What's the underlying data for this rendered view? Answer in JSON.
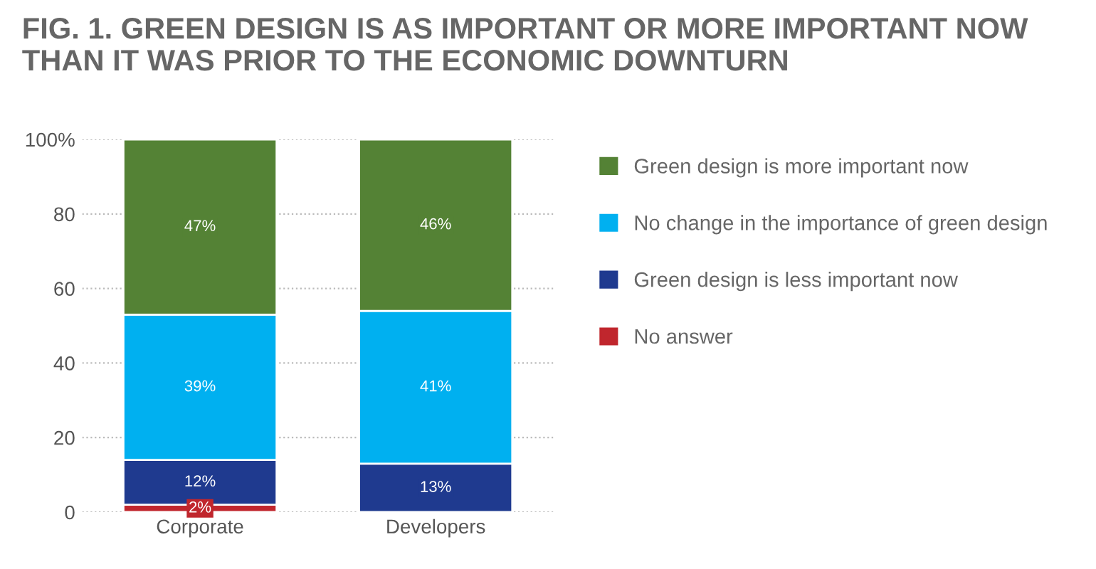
{
  "chart_data": {
    "type": "bar",
    "stacked": true,
    "title": "FIG. 1. GREEN DESIGN IS AS IMPORTANT OR MORE IMPORTANT NOW THAN IT WAS PRIOR TO THE ECONOMIC DOWNTURN",
    "categories": [
      "Corporate",
      "Developers"
    ],
    "series": [
      {
        "name": "No answer",
        "color": "#c0262d",
        "values": [
          2,
          0
        ],
        "value_labels": [
          "2%",
          null
        ]
      },
      {
        "name": "Green design is less important now",
        "color": "#1f3a8f",
        "values": [
          12,
          13
        ],
        "value_labels": [
          "12%",
          "13%"
        ]
      },
      {
        "name": "No change in the importance of green design",
        "color": "#00b0f0",
        "values": [
          39,
          41
        ],
        "value_labels": [
          "39%",
          "41%"
        ]
      },
      {
        "name": "Green design is more important now",
        "color": "#548235",
        "values": [
          47,
          46
        ],
        "value_labels": [
          "47%",
          "46%"
        ]
      }
    ],
    "ylim": [
      0,
      100
    ],
    "yticks": [
      0,
      20,
      40,
      60,
      80,
      {
        "value": 100,
        "label": "100%"
      }
    ],
    "grid": "y",
    "legend": "right"
  }
}
